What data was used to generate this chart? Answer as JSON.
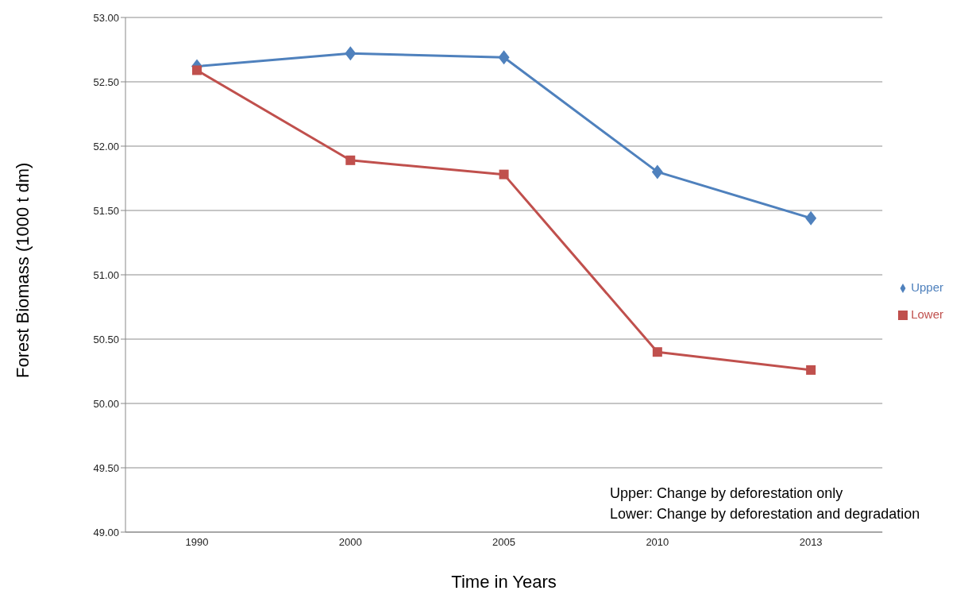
{
  "chart_data": {
    "type": "line",
    "xlabel": "Time in Years",
    "ylabel": "Forest Biomass (1000 t dm)",
    "categories": [
      "1990",
      "2000",
      "2005",
      "2010",
      "2013"
    ],
    "series": [
      {
        "name": "Upper",
        "color": "#4f81bd",
        "marker": "diamond",
        "values": [
          52.62,
          52.72,
          52.69,
          51.8,
          51.44
        ]
      },
      {
        "name": "Lower",
        "color": "#c0504d",
        "marker": "square",
        "values": [
          52.59,
          51.89,
          51.78,
          50.4,
          50.26
        ]
      }
    ],
    "ylim": [
      49,
      53
    ],
    "yticks": [
      {
        "value": 49,
        "label": "49.00"
      },
      {
        "value": 49.5,
        "label": "49.50"
      },
      {
        "value": 50,
        "label": "50.00"
      },
      {
        "value": 50.5,
        "label": "50.50"
      },
      {
        "value": 51,
        "label": "51.00"
      },
      {
        "value": 51.5,
        "label": "51.50"
      },
      {
        "value": 52,
        "label": "52.00"
      },
      {
        "value": 52.5,
        "label": "52.50"
      },
      {
        "value": 53,
        "label": "53.00"
      }
    ],
    "grid": "y",
    "legend": "right",
    "line_style": "solid",
    "annotations": [
      "Upper: Change by deforestation only",
      "Lower: Change by deforestation and degradation"
    ]
  }
}
